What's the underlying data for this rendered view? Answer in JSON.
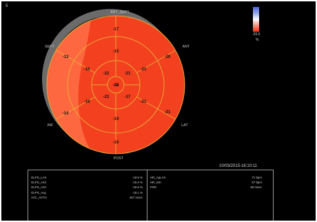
{
  "corner_mark": "5",
  "scale": {
    "value": "-20.0",
    "unit": "%",
    "colors": {
      "top": "#4a5fd6",
      "middle": "#ffffff",
      "bottom": "#ff2a10"
    }
  },
  "orientation": {
    "ant_sept": "ANT_SEPT",
    "ant": "ANT",
    "sept": "SEPT",
    "inf": "INF",
    "lat": "LAT",
    "post": "POST"
  },
  "bullseye": {
    "fill_color": "#f3401f",
    "border_color": "#e7a935",
    "segment_labels": [
      "-17",
      "-20",
      "-21",
      "-14",
      "-13",
      "-15",
      "-21",
      "-21",
      "-19",
      "-18",
      "-16",
      "-19",
      "-22",
      "-21",
      "-17",
      "-22",
      "-22",
      "-20"
    ]
  },
  "timestamp": "10/03/2015-16:10:11",
  "metrics_left": [
    {
      "label": "GLPS_LAX",
      "value": "-18.9 %"
    },
    {
      "label": "GLPS_A4C",
      "value": "-16.4 %"
    },
    {
      "label": "GLPS_A2C",
      "value": "-19.9 %"
    },
    {
      "label": "GLPS_Avg",
      "value": "-18.1 %"
    },
    {
      "label": "AVC_AVTO",
      "value": "457 msec"
    }
  ],
  "metrics_right": [
    {
      "label": "HR_ApLAX",
      "value": "71 bpm"
    },
    {
      "label": "HR_min",
      "value": "57 bpm"
    },
    {
      "label": "PSD",
      "value": "58 msec"
    }
  ]
}
